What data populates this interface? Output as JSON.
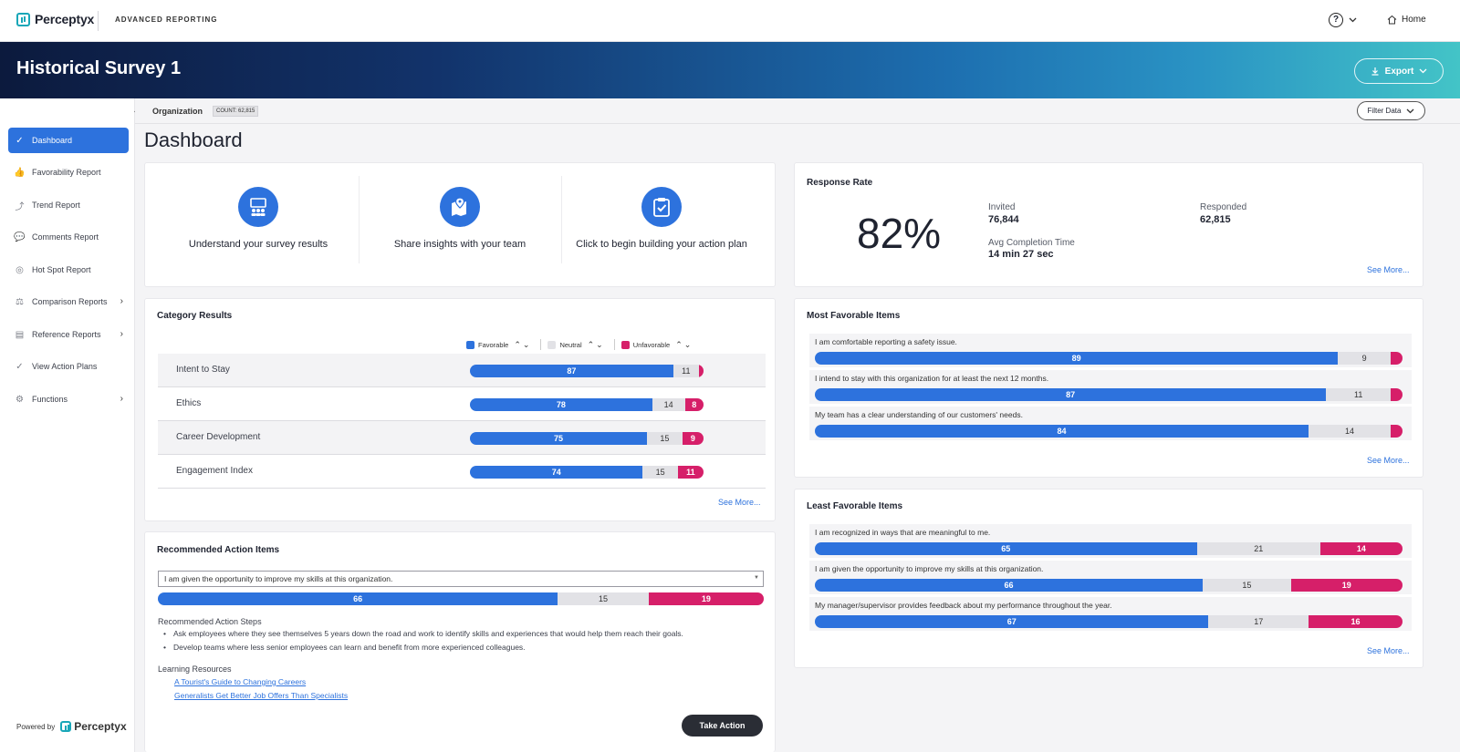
{
  "brand": {
    "name": "Perceptyx",
    "app": "ADVANCED REPORTING"
  },
  "topnav": {
    "help": "?",
    "home": "Home"
  },
  "header": {
    "title": "Historical Survey 1",
    "export": "Export"
  },
  "org": {
    "label": "Organization",
    "count": "COUNT: 62,815",
    "filter": "Filter Data"
  },
  "page": {
    "title": "Dashboard"
  },
  "sidebar": {
    "items": [
      {
        "label": "Dashboard",
        "icon": "dashboard-icon"
      },
      {
        "label": "Favorability Report",
        "icon": "thumbs-up-icon"
      },
      {
        "label": "Trend Report",
        "icon": "trend-icon"
      },
      {
        "label": "Comments Report",
        "icon": "comments-icon"
      },
      {
        "label": "Hot Spot Report",
        "icon": "target-icon"
      },
      {
        "label": "Comparison Reports",
        "icon": "scale-icon"
      },
      {
        "label": "Reference Reports",
        "icon": "chart-icon"
      },
      {
        "label": "View Action Plans",
        "icon": "check-circle-icon"
      },
      {
        "label": "Functions",
        "icon": "gear-icon"
      }
    ],
    "powered_by": "Powered by"
  },
  "quicklinks": [
    {
      "label": "Understand your survey results",
      "icon": "team-board-icon"
    },
    {
      "label": "Share insights with your team",
      "icon": "map-pin-icon"
    },
    {
      "label": "Click to begin building your action plan",
      "icon": "clipboard-check-icon"
    }
  ],
  "response_rate": {
    "title": "Response Rate",
    "rate": "82%",
    "invited_label": "Invited",
    "invited": "76,844",
    "responded_label": "Responded",
    "responded": "62,815",
    "avg_label": "Avg Completion Time",
    "avg": "14 min 27 sec",
    "see_more": "See More..."
  },
  "category_results": {
    "title": "Category Results",
    "legend": {
      "favorable": "Favorable",
      "neutral": "Neutral",
      "unfavorable": "Unfavorable"
    },
    "rows": [
      {
        "label": "Intent to Stay",
        "fav": 87,
        "neu": 11,
        "unf": 2,
        "fav_txt": "87",
        "neu_txt": "11",
        "unf_txt": ""
      },
      {
        "label": "Ethics",
        "fav": 78,
        "neu": 14,
        "unf": 8,
        "fav_txt": "78",
        "neu_txt": "14",
        "unf_txt": "8"
      },
      {
        "label": "Career Development",
        "fav": 75,
        "neu": 15,
        "unf": 9,
        "fav_txt": "75",
        "neu_txt": "15",
        "unf_txt": "9"
      },
      {
        "label": "Engagement Index",
        "fav": 74,
        "neu": 15,
        "unf": 11,
        "fav_txt": "74",
        "neu_txt": "15",
        "unf_txt": "11"
      }
    ],
    "see_more": "See More..."
  },
  "most_favorable": {
    "title": "Most Favorable Items",
    "items": [
      {
        "q": "I am comfortable reporting a safety issue.",
        "fav": 89,
        "neu": 9,
        "unf": 2,
        "fav_txt": "89",
        "neu_txt": "9",
        "unf_txt": ""
      },
      {
        "q": "I intend to stay with this organization for at least the next 12 months.",
        "fav": 87,
        "neu": 11,
        "unf": 2,
        "fav_txt": "87",
        "neu_txt": "11",
        "unf_txt": ""
      },
      {
        "q": "My team has a clear understanding of our customers' needs.",
        "fav": 84,
        "neu": 14,
        "unf": 2,
        "fav_txt": "84",
        "neu_txt": "14",
        "unf_txt": ""
      }
    ],
    "see_more": "See More..."
  },
  "least_favorable": {
    "title": "Least Favorable Items",
    "items": [
      {
        "q": "I am recognized in ways that are meaningful to me.",
        "fav": 65,
        "neu": 21,
        "unf": 14,
        "fav_txt": "65",
        "neu_txt": "21",
        "unf_txt": "14"
      },
      {
        "q": "I am given the opportunity to improve my skills at this organization.",
        "fav": 66,
        "neu": 15,
        "unf": 19,
        "fav_txt": "66",
        "neu_txt": "15",
        "unf_txt": "19"
      },
      {
        "q": "My manager/supervisor provides feedback about my performance throughout the year.",
        "fav": 67,
        "neu": 17,
        "unf": 16,
        "fav_txt": "67",
        "neu_txt": "17",
        "unf_txt": "16"
      }
    ],
    "see_more": "See More..."
  },
  "recommended": {
    "title": "Recommended Action Items",
    "selected": "I am given the opportunity to improve my skills at this organization.",
    "bar": {
      "fav": 66,
      "neu": 15,
      "unf": 19,
      "fav_txt": "66",
      "neu_txt": "15",
      "unf_txt": "19"
    },
    "steps_title": "Recommended Action Steps",
    "steps": [
      "Ask employees where they see themselves 5 years down the road and work to identify skills and experiences that would help them reach their goals.",
      "Develop teams where less senior employees can learn and benefit from more experienced colleagues."
    ],
    "resources_title": "Learning Resources",
    "resources": [
      "A Tourist's Guide to Changing Careers",
      "Generalists Get Better Job Offers Than Specialists"
    ],
    "take_action": "Take Action"
  },
  "colors": {
    "favorable": "#2d72dd",
    "neutral": "#e2e2e6",
    "unfavorable": "#d61f69"
  }
}
